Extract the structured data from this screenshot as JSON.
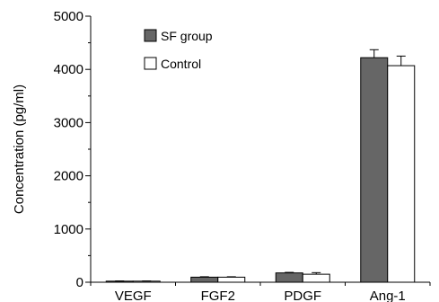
{
  "chart_data": {
    "type": "bar",
    "title": "",
    "xlabel": "",
    "ylabel": "Concentration (pg/ml)",
    "ylim": [
      0,
      5000
    ],
    "yticks": [
      0,
      1000,
      2000,
      3000,
      4000,
      5000
    ],
    "ytick_labels": [
      "0",
      "1000",
      "2000",
      "3000",
      "4000",
      "5000"
    ],
    "categories": [
      "VEGF",
      "FGF2",
      "PDGF",
      "Ang-1"
    ],
    "series": [
      {
        "name": "SF group",
        "color": "#666666",
        "values": [
          20,
          95,
          175,
          4220
        ],
        "errors": [
          5,
          8,
          10,
          150
        ]
      },
      {
        "name": "Control",
        "color": "#ffffff",
        "values": [
          20,
          95,
          150,
          4070
        ],
        "errors": [
          5,
          8,
          30,
          180
        ]
      }
    ],
    "legend_position": "top-left",
    "grid": false
  }
}
